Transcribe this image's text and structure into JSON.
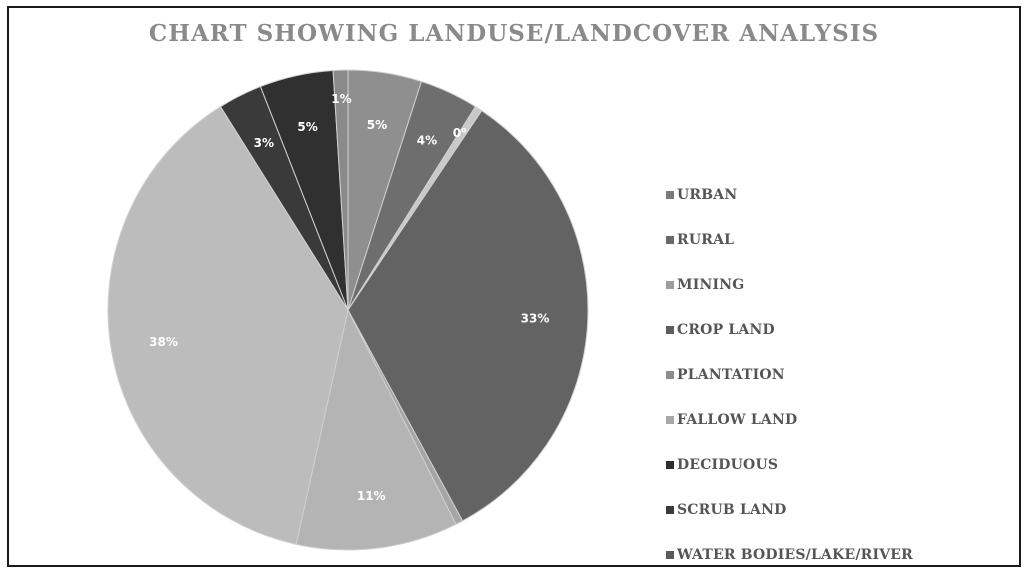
{
  "chart_data": {
    "type": "pie",
    "title": "CHART SHOWING LANDUSE/LANDCOVER ANALYSIS",
    "slices": [
      {
        "label": "URBAN",
        "value": 5,
        "display": "5%",
        "color": "#8f8f8f"
      },
      {
        "label": "RURAL",
        "value": 4,
        "display": "4%",
        "color": "#6e6e6e"
      },
      {
        "label": "MINING",
        "value": 0.5,
        "display": "0%",
        "color": "#c9c9c9"
      },
      {
        "label": "CROP LAND",
        "value": 33,
        "display": "33%",
        "color": "#636363"
      },
      {
        "label": "PLANTATION",
        "value": 0.5,
        "display": "",
        "color": "#a6a6a6"
      },
      {
        "label": "FALLOW LAND",
        "value": 11,
        "display": "11%",
        "color": "#b4b4b4"
      },
      {
        "label": "DECIDUOUS",
        "value": 38,
        "display": "38%",
        "color": "#bcbcbc"
      },
      {
        "label": "SCRUB LAND",
        "value": 3,
        "display": "3%",
        "color": "#3a3a3a"
      },
      {
        "label": "WATER BODIES/LAKE/RIVER",
        "value": 5,
        "display": "5%",
        "color": "#303030"
      },
      {
        "label": "",
        "value": 1,
        "display": "1%",
        "color": "#8a8a8a"
      }
    ],
    "legend": [
      "URBAN",
      "RURAL",
      "MINING",
      "CROP LAND",
      "PLANTATION",
      "FALLOW LAND",
      "DECIDUOUS",
      "SCRUB LAND",
      "WATER BODIES/LAKE/RIVER"
    ],
    "legend_colors": [
      "#7a7a7a",
      "#6a6a6a",
      "#9c9c9c",
      "#5e5e5e",
      "#8c8c8c",
      "#a8a8a8",
      "#2e2e2e",
      "#3a3a3a",
      "#5a5a5a"
    ],
    "legend_position": "right"
  }
}
